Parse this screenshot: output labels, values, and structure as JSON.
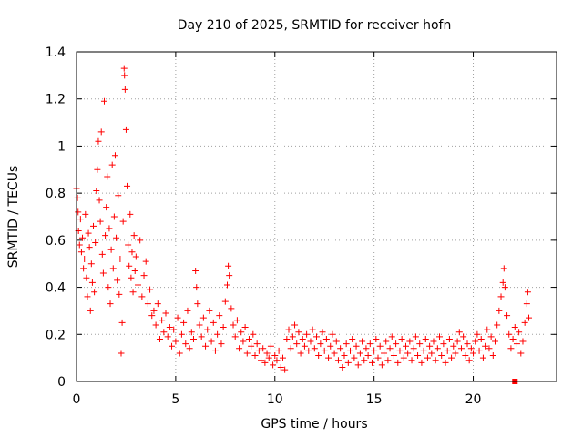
{
  "chart_data": {
    "type": "scatter",
    "title": "Day 210 of 2025, SRMTID for receiver hofn",
    "xlabel": "GPS time / hours",
    "ylabel": "SRMTID / TECUs",
    "xlim": [
      0,
      24.2
    ],
    "ylim": [
      0,
      1.4
    ],
    "xticks": [
      0,
      5,
      10,
      15,
      20
    ],
    "xtick_labels": [
      "0",
      "5",
      "10",
      "15",
      "20"
    ],
    "yticks": [
      0,
      0.2,
      0.4,
      0.6,
      0.8,
      1,
      1.2,
      1.4
    ],
    "ytick_labels": [
      "0",
      "0.2",
      "0.4",
      "0.6",
      "0.8",
      "1",
      "1.2",
      "1.4"
    ],
    "grid": true,
    "marker": "+",
    "color": "#ff0000",
    "series": [
      {
        "name": "SRMTID",
        "points": [
          [
            0.0,
            0.82
          ],
          [
            0.05,
            0.78
          ],
          [
            0.08,
            0.72
          ],
          [
            0.1,
            0.64
          ],
          [
            0.15,
            0.58
          ],
          [
            0.2,
            0.69
          ],
          [
            0.25,
            0.55
          ],
          [
            0.3,
            0.61
          ],
          [
            0.35,
            0.48
          ],
          [
            0.4,
            0.52
          ],
          [
            0.45,
            0.71
          ],
          [
            0.5,
            0.44
          ],
          [
            0.55,
            0.36
          ],
          [
            0.6,
            0.63
          ],
          [
            0.65,
            0.57
          ],
          [
            0.7,
            0.3
          ],
          [
            0.75,
            0.5
          ],
          [
            0.8,
            0.42
          ],
          [
            0.85,
            0.66
          ],
          [
            0.9,
            0.38
          ],
          [
            0.95,
            0.59
          ],
          [
            1.0,
            0.81
          ],
          [
            1.05,
            0.9
          ],
          [
            1.1,
            1.02
          ],
          [
            1.15,
            0.77
          ],
          [
            1.2,
            0.68
          ],
          [
            1.25,
            1.06
          ],
          [
            1.3,
            0.54
          ],
          [
            1.35,
            0.46
          ],
          [
            1.4,
            1.19
          ],
          [
            1.45,
            0.62
          ],
          [
            1.5,
            0.74
          ],
          [
            1.55,
            0.87
          ],
          [
            1.6,
            0.4
          ],
          [
            1.65,
            0.65
          ],
          [
            1.7,
            0.33
          ],
          [
            1.75,
            0.56
          ],
          [
            1.8,
            0.92
          ],
          [
            1.85,
            0.48
          ],
          [
            1.9,
            0.7
          ],
          [
            1.95,
            0.96
          ],
          [
            2.0,
            0.61
          ],
          [
            2.05,
            0.43
          ],
          [
            2.1,
            0.79
          ],
          [
            2.15,
            0.37
          ],
          [
            2.2,
            0.52
          ],
          [
            2.25,
            0.12
          ],
          [
            2.3,
            0.25
          ],
          [
            2.35,
            0.68
          ],
          [
            2.4,
            1.33
          ],
          [
            2.42,
            1.3
          ],
          [
            2.45,
            1.24
          ],
          [
            2.5,
            1.07
          ],
          [
            2.55,
            0.83
          ],
          [
            2.6,
            0.58
          ],
          [
            2.65,
            0.49
          ],
          [
            2.7,
            0.71
          ],
          [
            2.75,
            0.44
          ],
          [
            2.8,
            0.55
          ],
          [
            2.85,
            0.38
          ],
          [
            2.9,
            0.62
          ],
          [
            2.95,
            0.47
          ],
          [
            3.0,
            0.53
          ],
          [
            3.1,
            0.41
          ],
          [
            3.2,
            0.6
          ],
          [
            3.3,
            0.36
          ],
          [
            3.4,
            0.45
          ],
          [
            3.5,
            0.51
          ],
          [
            3.6,
            0.33
          ],
          [
            3.7,
            0.39
          ],
          [
            3.8,
            0.28
          ],
          [
            3.9,
            0.3
          ],
          [
            4.0,
            0.24
          ],
          [
            4.1,
            0.33
          ],
          [
            4.2,
            0.18
          ],
          [
            4.3,
            0.26
          ],
          [
            4.4,
            0.21
          ],
          [
            4.5,
            0.29
          ],
          [
            4.6,
            0.19
          ],
          [
            4.7,
            0.23
          ],
          [
            4.8,
            0.15
          ],
          [
            4.9,
            0.22
          ],
          [
            5.0,
            0.17
          ],
          [
            5.1,
            0.27
          ],
          [
            5.2,
            0.12
          ],
          [
            5.3,
            0.2
          ],
          [
            5.4,
            0.25
          ],
          [
            5.5,
            0.16
          ],
          [
            5.6,
            0.3
          ],
          [
            5.7,
            0.14
          ],
          [
            5.8,
            0.21
          ],
          [
            5.9,
            0.18
          ],
          [
            6.0,
            0.47
          ],
          [
            6.05,
            0.4
          ],
          [
            6.1,
            0.33
          ],
          [
            6.2,
            0.24
          ],
          [
            6.3,
            0.19
          ],
          [
            6.4,
            0.27
          ],
          [
            6.5,
            0.15
          ],
          [
            6.6,
            0.22
          ],
          [
            6.7,
            0.3
          ],
          [
            6.8,
            0.17
          ],
          [
            6.9,
            0.25
          ],
          [
            7.0,
            0.13
          ],
          [
            7.1,
            0.2
          ],
          [
            7.2,
            0.28
          ],
          [
            7.3,
            0.16
          ],
          [
            7.4,
            0.23
          ],
          [
            7.5,
            0.34
          ],
          [
            7.6,
            0.41
          ],
          [
            7.65,
            0.49
          ],
          [
            7.7,
            0.45
          ],
          [
            7.8,
            0.31
          ],
          [
            7.9,
            0.24
          ],
          [
            8.0,
            0.19
          ],
          [
            8.1,
            0.26
          ],
          [
            8.2,
            0.14
          ],
          [
            8.3,
            0.21
          ],
          [
            8.4,
            0.17
          ],
          [
            8.5,
            0.23
          ],
          [
            8.6,
            0.12
          ],
          [
            8.7,
            0.18
          ],
          [
            8.8,
            0.15
          ],
          [
            8.9,
            0.2
          ],
          [
            9.0,
            0.11
          ],
          [
            9.1,
            0.16
          ],
          [
            9.2,
            0.13
          ],
          [
            9.3,
            0.09
          ],
          [
            9.4,
            0.14
          ],
          [
            9.5,
            0.08
          ],
          [
            9.6,
            0.12
          ],
          [
            9.7,
            0.1
          ],
          [
            9.8,
            0.15
          ],
          [
            9.9,
            0.07
          ],
          [
            10.0,
            0.11
          ],
          [
            10.1,
            0.09
          ],
          [
            10.2,
            0.13
          ],
          [
            10.3,
            0.06
          ],
          [
            10.4,
            0.1
          ],
          [
            10.5,
            0.05
          ],
          [
            10.6,
            0.18
          ],
          [
            10.7,
            0.22
          ],
          [
            10.8,
            0.14
          ],
          [
            10.9,
            0.19
          ],
          [
            11.0,
            0.24
          ],
          [
            11.1,
            0.16
          ],
          [
            11.2,
            0.21
          ],
          [
            11.3,
            0.12
          ],
          [
            11.4,
            0.18
          ],
          [
            11.5,
            0.15
          ],
          [
            11.6,
            0.2
          ],
          [
            11.7,
            0.13
          ],
          [
            11.8,
            0.17
          ],
          [
            11.9,
            0.22
          ],
          [
            12.0,
            0.14
          ],
          [
            12.1,
            0.19
          ],
          [
            12.2,
            0.11
          ],
          [
            12.3,
            0.16
          ],
          [
            12.4,
            0.21
          ],
          [
            12.5,
            0.13
          ],
          [
            12.6,
            0.18
          ],
          [
            12.7,
            0.1
          ],
          [
            12.8,
            0.15
          ],
          [
            12.9,
            0.2
          ],
          [
            13.0,
            0.12
          ],
          [
            13.1,
            0.17
          ],
          [
            13.2,
            0.09
          ],
          [
            13.3,
            0.14
          ],
          [
            13.4,
            0.06
          ],
          [
            13.5,
            0.11
          ],
          [
            13.6,
            0.16
          ],
          [
            13.7,
            0.08
          ],
          [
            13.8,
            0.13
          ],
          [
            13.9,
            0.18
          ],
          [
            14.0,
            0.1
          ],
          [
            14.1,
            0.15
          ],
          [
            14.2,
            0.07
          ],
          [
            14.3,
            0.12
          ],
          [
            14.4,
            0.17
          ],
          [
            14.5,
            0.09
          ],
          [
            14.6,
            0.14
          ],
          [
            14.7,
            0.11
          ],
          [
            14.8,
            0.16
          ],
          [
            14.9,
            0.08
          ],
          [
            15.0,
            0.13
          ],
          [
            15.1,
            0.18
          ],
          [
            15.2,
            0.1
          ],
          [
            15.3,
            0.15
          ],
          [
            15.4,
            0.07
          ],
          [
            15.5,
            0.12
          ],
          [
            15.6,
            0.17
          ],
          [
            15.7,
            0.09
          ],
          [
            15.8,
            0.14
          ],
          [
            15.9,
            0.19
          ],
          [
            16.0,
            0.11
          ],
          [
            16.1,
            0.16
          ],
          [
            16.2,
            0.08
          ],
          [
            16.3,
            0.13
          ],
          [
            16.4,
            0.18
          ],
          [
            16.5,
            0.1
          ],
          [
            16.6,
            0.15
          ],
          [
            16.7,
            0.12
          ],
          [
            16.8,
            0.17
          ],
          [
            16.9,
            0.09
          ],
          [
            17.0,
            0.14
          ],
          [
            17.1,
            0.19
          ],
          [
            17.2,
            0.11
          ],
          [
            17.3,
            0.16
          ],
          [
            17.4,
            0.08
          ],
          [
            17.5,
            0.13
          ],
          [
            17.6,
            0.18
          ],
          [
            17.7,
            0.1
          ],
          [
            17.8,
            0.15
          ],
          [
            17.9,
            0.12
          ],
          [
            18.0,
            0.17
          ],
          [
            18.1,
            0.09
          ],
          [
            18.2,
            0.14
          ],
          [
            18.3,
            0.19
          ],
          [
            18.4,
            0.11
          ],
          [
            18.5,
            0.16
          ],
          [
            18.6,
            0.08
          ],
          [
            18.7,
            0.13
          ],
          [
            18.8,
            0.18
          ],
          [
            18.9,
            0.1
          ],
          [
            19.0,
            0.15
          ],
          [
            19.1,
            0.12
          ],
          [
            19.2,
            0.17
          ],
          [
            19.3,
            0.21
          ],
          [
            19.4,
            0.14
          ],
          [
            19.5,
            0.19
          ],
          [
            19.6,
            0.11
          ],
          [
            19.7,
            0.16
          ],
          [
            19.8,
            0.09
          ],
          [
            19.9,
            0.14
          ],
          [
            20.0,
            0.12
          ],
          [
            20.1,
            0.17
          ],
          [
            20.2,
            0.2
          ],
          [
            20.3,
            0.13
          ],
          [
            20.4,
            0.18
          ],
          [
            20.5,
            0.1
          ],
          [
            20.6,
            0.15
          ],
          [
            20.7,
            0.22
          ],
          [
            20.8,
            0.14
          ],
          [
            20.9,
            0.19
          ],
          [
            21.0,
            0.11
          ],
          [
            21.1,
            0.17
          ],
          [
            21.2,
            0.24
          ],
          [
            21.3,
            0.3
          ],
          [
            21.4,
            0.36
          ],
          [
            21.5,
            0.42
          ],
          [
            21.55,
            0.48
          ],
          [
            21.6,
            0.4
          ],
          [
            21.7,
            0.28
          ],
          [
            21.8,
            0.2
          ],
          [
            21.9,
            0.14
          ],
          [
            22.0,
            0.18
          ],
          [
            22.1,
            0.23
          ],
          [
            22.2,
            0.16
          ],
          [
            22.3,
            0.21
          ],
          [
            22.4,
            0.12
          ],
          [
            22.5,
            0.17
          ],
          [
            22.6,
            0.25
          ],
          [
            22.7,
            0.33
          ],
          [
            22.75,
            0.38
          ],
          [
            22.8,
            0.27
          ]
        ]
      }
    ],
    "annotations": [
      {
        "text": "",
        "x": 22.1,
        "y": 0.0,
        "marker": "square"
      }
    ]
  }
}
